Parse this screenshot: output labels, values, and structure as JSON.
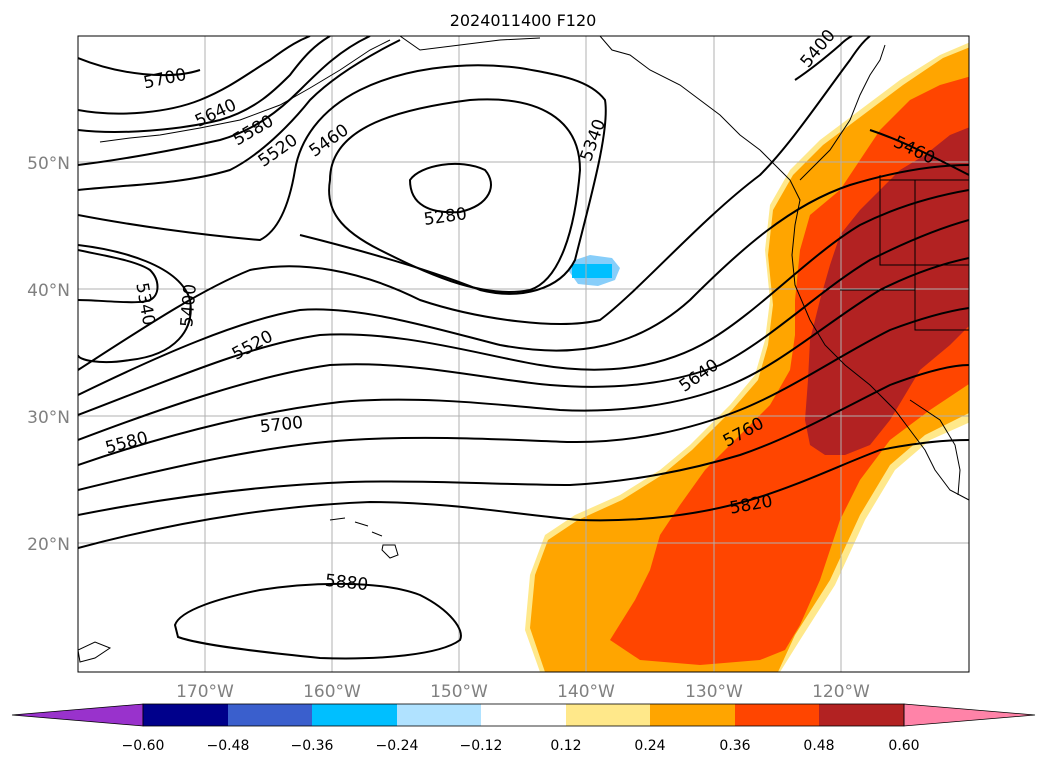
{
  "title": "2024011400 F120",
  "map": {
    "lat_labels": [
      "50°N",
      "40°N",
      "30°N",
      "20°N"
    ],
    "lon_labels": [
      "170°W",
      "160°W",
      "150°W",
      "140°W",
      "130°W",
      "120°W"
    ],
    "fill_colors": {
      "orange": "#ffa500",
      "light_yellow": "#ffe88a",
      "red_orange": "#ff4500",
      "dark_red": "#b22222",
      "light_blue": "#00bfff"
    },
    "contour_labels": [
      "5700",
      "5640",
      "5580",
      "5520",
      "5460",
      "5400",
      "5340",
      "5280",
      "5340",
      "5400",
      "5520",
      "5640",
      "5760",
      "5820",
      "5460",
      "5700",
      "5580",
      "5880"
    ]
  },
  "colorbar": {
    "ticks": [
      "−0.60",
      "−0.48",
      "−0.36",
      "−0.24",
      "−0.12",
      "0.12",
      "0.24",
      "0.36",
      "0.48",
      "0.60"
    ],
    "colors": [
      "#9932cc",
      "#00008b",
      "#3a5fcd",
      "#00bfff",
      "#b0e2ff",
      "#ffffff",
      "#ffe88a",
      "#ffa500",
      "#ff4500",
      "#b22222",
      "#ff83a8"
    ]
  }
}
